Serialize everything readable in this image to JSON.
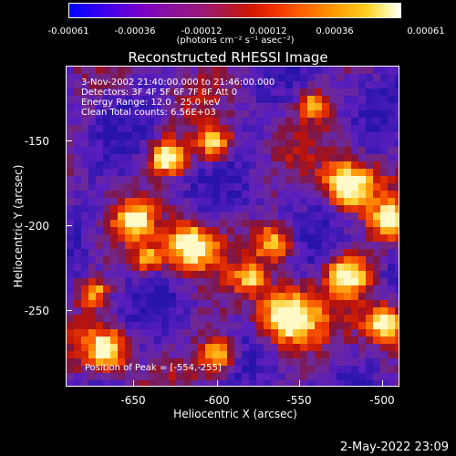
{
  "colorbar": {
    "ticks": [
      "-0.00061",
      "-0.00036",
      "-0.00012",
      "0.00012",
      "0.00036",
      "0.00061"
    ],
    "units": "(photons cm⁻² s⁻¹ asec⁻²)"
  },
  "title": "Reconstructed RHESSI Image",
  "info": {
    "time": "3-Nov-2002 21:40:00.000 to 21:46:00.000",
    "detectors": "Detectors: 3F 4F 5F 6F 7F 8F  Att 0",
    "energy": "Energy Range: 12.0 - 25.0 keV",
    "clean": "Clean     Total counts: 6.56E+03",
    "peak": "Position of Peak = [-554,-255]"
  },
  "axes": {
    "xlabel": "Heliocentric X (arcsec)",
    "ylabel": "Heliocentric Y (arcsec)",
    "xticks": [
      "-650",
      "-600",
      "-550",
      "-500"
    ],
    "yticks": [
      "-150",
      "-200",
      "-250"
    ]
  },
  "timestamp": "2-May-2022 23:09"
}
